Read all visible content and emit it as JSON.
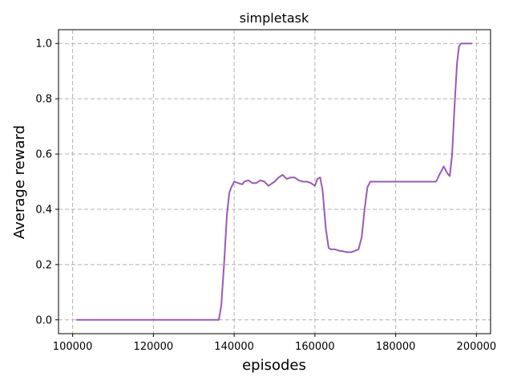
{
  "chart_data": {
    "type": "line",
    "title": "simpletask",
    "xlabel": "episodes",
    "ylabel": "Average reward",
    "xlim": [
      96500,
      203500
    ],
    "ylim": [
      -0.05,
      1.05
    ],
    "x_ticks": [
      100000,
      120000,
      140000,
      160000,
      180000,
      200000
    ],
    "y_ticks": [
      0.0,
      0.2,
      0.4,
      0.6,
      0.8,
      1.0
    ],
    "x_tick_labels": [
      "100000",
      "120000",
      "140000",
      "160000",
      "180000",
      "200000"
    ],
    "y_tick_labels": [
      "0.0",
      "0.2",
      "0.4",
      "0.6",
      "0.8",
      "1.0"
    ],
    "grid": true,
    "grid_style": "dashed",
    "series": [
      {
        "color": "#9b59b6",
        "x": [
          101000,
          110000,
          120000,
          130000,
          136200,
          136800,
          137500,
          138200,
          138800,
          139300,
          140000,
          141000,
          142000,
          142500,
          143500,
          144500,
          145500,
          146500,
          147500,
          148500,
          150000,
          151000,
          152000,
          153000,
          154000,
          155000,
          156000,
          157000,
          158000,
          159000,
          160000,
          160600,
          161300,
          161900,
          162700,
          163400,
          164000,
          165000,
          166000,
          167000,
          168000,
          169000,
          170000,
          170800,
          171600,
          172300,
          173000,
          173700,
          174500,
          180000,
          185000,
          190000,
          191000,
          191900,
          192800,
          193400,
          194000,
          194600,
          195200,
          195700,
          196200,
          197000,
          198000,
          198800
        ],
        "y": [
          0.0,
          0.0,
          0.0,
          0.0,
          0.0,
          0.05,
          0.2,
          0.38,
          0.46,
          0.48,
          0.5,
          0.495,
          0.49,
          0.5,
          0.505,
          0.495,
          0.495,
          0.505,
          0.5,
          0.485,
          0.5,
          0.515,
          0.525,
          0.51,
          0.515,
          0.515,
          0.505,
          0.5,
          0.5,
          0.495,
          0.485,
          0.51,
          0.515,
          0.47,
          0.33,
          0.26,
          0.255,
          0.255,
          0.25,
          0.248,
          0.245,
          0.245,
          0.25,
          0.255,
          0.3,
          0.4,
          0.48,
          0.5,
          0.5,
          0.5,
          0.5,
          0.5,
          0.53,
          0.555,
          0.53,
          0.52,
          0.6,
          0.78,
          0.93,
          0.99,
          1.0,
          1.0,
          1.0,
          1.0
        ]
      }
    ]
  }
}
